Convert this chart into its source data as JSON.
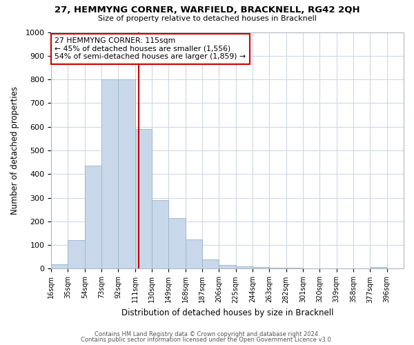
{
  "title": "27, HEMMYNG CORNER, WARFIELD, BRACKNELL, RG42 2QH",
  "subtitle": "Size of property relative to detached houses in Bracknell",
  "xlabel": "Distribution of detached houses by size in Bracknell",
  "ylabel": "Number of detached properties",
  "bar_color": "#c8d8ea",
  "bar_edge_color": "#9ab4c8",
  "bin_labels": [
    "16sqm",
    "35sqm",
    "54sqm",
    "73sqm",
    "92sqm",
    "111sqm",
    "130sqm",
    "149sqm",
    "168sqm",
    "187sqm",
    "206sqm",
    "225sqm",
    "244sqm",
    "263sqm",
    "282sqm",
    "301sqm",
    "320sqm",
    "339sqm",
    "358sqm",
    "377sqm",
    "396sqm"
  ],
  "bin_left_edges": [
    16,
    35,
    54,
    73,
    92,
    111,
    130,
    149,
    168,
    187,
    206,
    225,
    244,
    263,
    282,
    301,
    320,
    339,
    358,
    377,
    396
  ],
  "bar_heights": [
    18,
    120,
    435,
    800,
    800,
    590,
    290,
    215,
    125,
    40,
    15,
    10,
    8,
    5,
    3,
    2,
    2,
    1,
    1,
    8,
    0
  ],
  "vline_x": 115,
  "vline_color": "#cc0000",
  "annotation_title": "27 HEMMYNG CORNER: 115sqm",
  "annotation_line1": "← 45% of detached houses are smaller (1,556)",
  "annotation_line2": "54% of semi-detached houses are larger (1,859) →",
  "annotation_box_color": "#ffffff",
  "annotation_box_edge": "#cc0000",
  "ylim": [
    0,
    1000
  ],
  "yticks": [
    0,
    100,
    200,
    300,
    400,
    500,
    600,
    700,
    800,
    900,
    1000
  ],
  "footer1": "Contains HM Land Registry data © Crown copyright and database right 2024.",
  "footer2": "Contains public sector information licensed under the Open Government Licence v3.0.",
  "background_color": "#ffffff",
  "grid_color": "#ccd8e4"
}
